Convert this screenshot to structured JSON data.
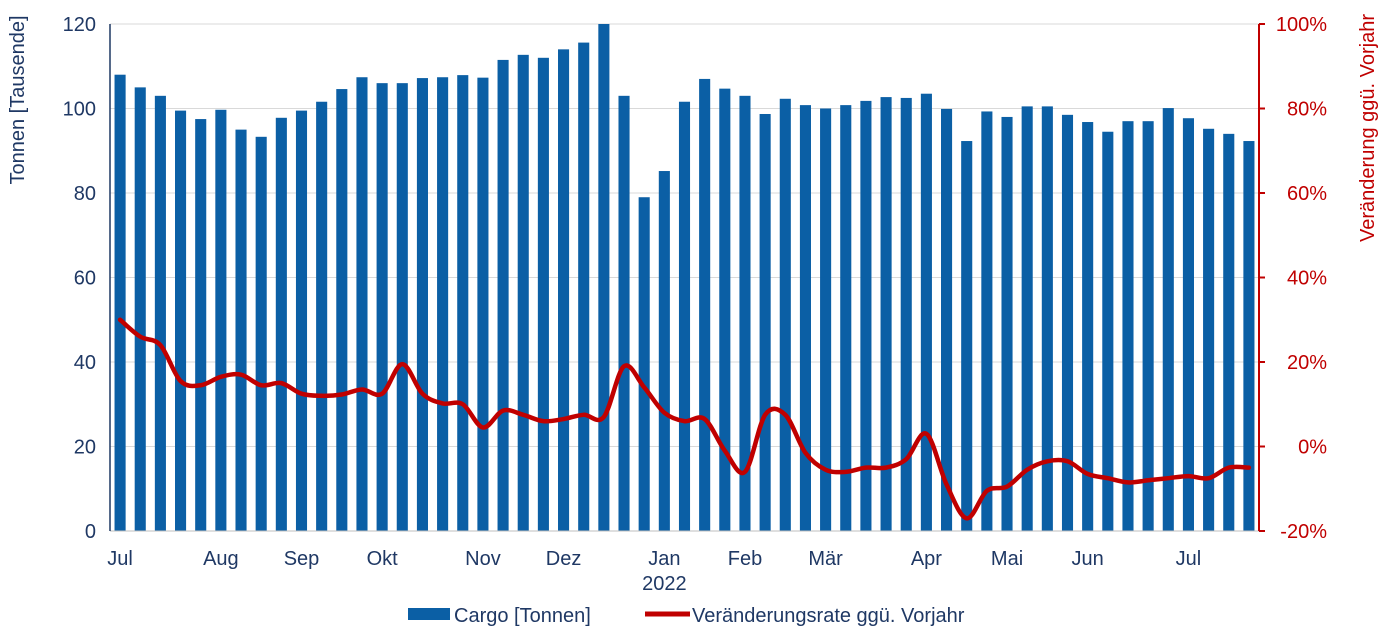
{
  "chart_data": {
    "type": "bar+line",
    "colors": {
      "bars": "#0b5fa5",
      "line": "#c00000",
      "grid": "#d9d9d9",
      "text": "#1f3864"
    },
    "left_axis": {
      "label": "Tonnen [Tausende]",
      "ylim": [
        0,
        120
      ],
      "ticks": [
        "0",
        "20",
        "40",
        "60",
        "80",
        "100",
        "120"
      ]
    },
    "right_axis": {
      "label": "Veränderung ggü. Vorjahr",
      "ylim": [
        -20,
        100
      ],
      "ticks": [
        "-20%",
        "0%",
        "20%",
        "40%",
        "60%",
        "80%",
        "100%"
      ]
    },
    "x_labels": [
      {
        "index": 0,
        "text": "Jul"
      },
      {
        "index": 5,
        "text": "Aug"
      },
      {
        "index": 9,
        "text": "Sep"
      },
      {
        "index": 13,
        "text": "Okt"
      },
      {
        "index": 18,
        "text": "Nov"
      },
      {
        "index": 22,
        "text": "Dez"
      },
      {
        "index": 27,
        "text": "Jan"
      },
      {
        "index": 31,
        "text": "Feb"
      },
      {
        "index": 35,
        "text": "Mär"
      },
      {
        "index": 40,
        "text": "Apr"
      },
      {
        "index": 44,
        "text": "Mai"
      },
      {
        "index": 48,
        "text": "Jun"
      },
      {
        "index": 53,
        "text": "Jul"
      }
    ],
    "year_label": {
      "index": 27,
      "text": "2022"
    },
    "series": [
      {
        "name": "Cargo [Tonnen]",
        "type": "bar",
        "axis": "left",
        "values": [
          108,
          105,
          103,
          99.5,
          97.5,
          99.7,
          95,
          93.3,
          97.8,
          99.5,
          101.6,
          104.6,
          107.4,
          106,
          106,
          107.2,
          107.4,
          107.9,
          107.3,
          111.5,
          112.7,
          112,
          114,
          115.6,
          120,
          103,
          79,
          85.2,
          101.6,
          107,
          104.7,
          103,
          98.7,
          102.3,
          100.8,
          100,
          100.8,
          101.8,
          102.7,
          102.5,
          103.5,
          99.9,
          92.3,
          99.3,
          98,
          100.5,
          100.5,
          98.5,
          96.8,
          94.5,
          97,
          97,
          100.1,
          97.7,
          95.2,
          94,
          92.3
        ]
      },
      {
        "name": "Veränderungsrate ggü. Vorjahr",
        "type": "line",
        "axis": "right",
        "values": [
          30,
          26,
          24,
          15.5,
          14.5,
          16.5,
          17,
          14.5,
          15,
          12.5,
          12,
          12.3,
          13.5,
          12.5,
          19.5,
          12.5,
          10.2,
          10,
          4.5,
          8.5,
          7.5,
          6,
          6.5,
          7.5,
          7,
          19,
          14,
          8,
          6,
          6.5,
          -1,
          -6,
          7.5,
          7.5,
          -1.5,
          -5.5,
          -6,
          -5,
          -5,
          -3,
          3,
          -9,
          -17,
          -10.5,
          -9.5,
          -5.5,
          -3.5,
          -3.5,
          -6.5,
          -7.5,
          -8.5,
          -8,
          -7.5,
          -7,
          -7.5,
          -5,
          -5
        ]
      }
    ]
  },
  "legend": {
    "bar_label": "Cargo [Tonnen]",
    "line_label": "Veränderungsrate ggü. Vorjahr"
  }
}
